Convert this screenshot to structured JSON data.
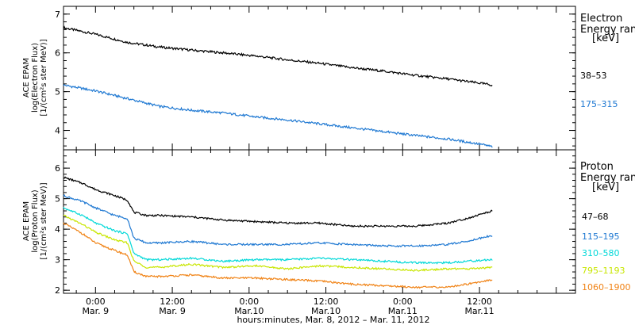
{
  "chart_data": [
    {
      "type": "line",
      "panel": "electron",
      "ylabel_lines": [
        "ACE EPAM",
        "log(Electron Flux)",
        "[1/(cm²s ster MeV)]"
      ],
      "ylim": [
        3.5,
        7.2
      ],
      "yticks": [
        4,
        5,
        6,
        7
      ],
      "legend_title_lines": [
        "Electron",
        "Energy ranges",
        "[keV]"
      ],
      "series": [
        {
          "name": "38–53",
          "color": "#000000",
          "x": [
            -5,
            0,
            5,
            10,
            15,
            20,
            25,
            30,
            35,
            40,
            45,
            50,
            55,
            60,
            62
          ],
          "values": [
            6.65,
            6.48,
            6.27,
            6.15,
            6.07,
            6.0,
            5.92,
            5.82,
            5.73,
            5.62,
            5.53,
            5.42,
            5.33,
            5.22,
            5.17
          ]
        },
        {
          "name": "175–315",
          "color": "#1e78d2",
          "x": [
            -5,
            0,
            5,
            10,
            15,
            20,
            25,
            30,
            35,
            40,
            45,
            50,
            55,
            60,
            62
          ],
          "values": [
            5.17,
            5.02,
            4.82,
            4.62,
            4.52,
            4.45,
            4.35,
            4.27,
            4.17,
            4.07,
            3.97,
            3.87,
            3.78,
            3.65,
            3.58
          ]
        }
      ]
    },
    {
      "type": "line",
      "panel": "proton",
      "ylabel_lines": [
        "ACE EPAM",
        "log(Proton Flux)",
        "[1/(cm²s ster MeV)]"
      ],
      "ylim": [
        1.9,
        6.6
      ],
      "yticks": [
        2,
        3,
        4,
        5,
        6
      ],
      "legend_title_lines": [
        "Proton",
        "Energy ranges",
        "[keV]"
      ],
      "series": [
        {
          "name": "47–68",
          "color": "#000000",
          "x": [
            -5,
            -2,
            0,
            3,
            5,
            6,
            8,
            10,
            15,
            20,
            25,
            30,
            35,
            40,
            45,
            50,
            55,
            58,
            62
          ],
          "values": [
            5.7,
            5.5,
            5.3,
            5.1,
            4.95,
            4.55,
            4.45,
            4.45,
            4.4,
            4.3,
            4.25,
            4.2,
            4.2,
            4.1,
            4.1,
            4.1,
            4.2,
            4.35,
            4.6
          ]
        },
        {
          "name": "115–195",
          "color": "#1e78d2",
          "x": [
            -5,
            -2,
            0,
            3,
            5,
            6,
            8,
            10,
            15,
            20,
            25,
            30,
            35,
            40,
            45,
            50,
            55,
            58,
            62
          ],
          "values": [
            5.1,
            4.9,
            4.7,
            4.45,
            4.35,
            3.7,
            3.55,
            3.55,
            3.6,
            3.5,
            3.5,
            3.5,
            3.55,
            3.5,
            3.45,
            3.45,
            3.5,
            3.6,
            3.8
          ]
        },
        {
          "name": "310–580",
          "color": "#00d8d8",
          "x": [
            -5,
            -2,
            0,
            3,
            5,
            6,
            8,
            10,
            15,
            20,
            25,
            30,
            35,
            40,
            45,
            50,
            55,
            58,
            62
          ],
          "values": [
            4.7,
            4.45,
            4.2,
            3.95,
            3.85,
            3.2,
            3.0,
            3.0,
            3.05,
            2.95,
            3.0,
            3.0,
            3.05,
            3.0,
            2.95,
            2.9,
            2.9,
            2.95,
            3.0
          ]
        },
        {
          "name": "795–1193",
          "color": "#c8e600",
          "x": [
            -5,
            -2,
            0,
            3,
            5,
            6,
            8,
            10,
            15,
            20,
            25,
            30,
            35,
            40,
            45,
            50,
            55,
            58,
            62
          ],
          "values": [
            4.45,
            4.15,
            3.9,
            3.65,
            3.55,
            2.95,
            2.75,
            2.75,
            2.85,
            2.75,
            2.8,
            2.7,
            2.8,
            2.75,
            2.7,
            2.65,
            2.7,
            2.7,
            2.75
          ]
        },
        {
          "name": "1060–1900",
          "color": "#f08214",
          "x": [
            -5,
            -2,
            0,
            3,
            5,
            6,
            8,
            10,
            15,
            20,
            25,
            30,
            35,
            40,
            45,
            50,
            55,
            58,
            62
          ],
          "values": [
            4.2,
            3.85,
            3.55,
            3.3,
            3.15,
            2.6,
            2.45,
            2.45,
            2.5,
            2.4,
            2.4,
            2.35,
            2.3,
            2.2,
            2.15,
            2.1,
            2.1,
            2.2,
            2.35
          ]
        }
      ]
    }
  ],
  "x_axis": {
    "xlim": [
      -5,
      75
    ],
    "major_ticks": [
      {
        "x": 0,
        "time": "0:00",
        "date": "Mar. 9"
      },
      {
        "x": 12,
        "time": "12:00",
        "date": "Mar. 9"
      },
      {
        "x": 24,
        "time": "0:00",
        "date": "Mar.10"
      },
      {
        "x": 36,
        "time": "12:00",
        "date": "Mar.10"
      },
      {
        "x": 48,
        "time": "0:00",
        "date": "Mar.11"
      },
      {
        "x": 60,
        "time": "12:00",
        "date": "Mar.11"
      }
    ],
    "xlabel": "hours:minutes, Mar.  8, 2012 – Mar. 11, 2012"
  }
}
